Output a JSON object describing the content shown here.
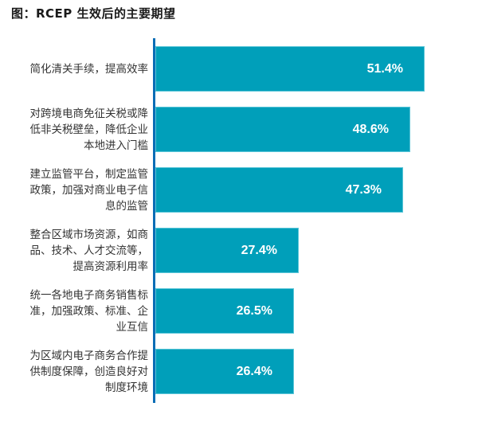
{
  "title": "图：RCEP 生效后的主要期望",
  "colors": {
    "bar": "#009fba",
    "axis": "#0a6db5",
    "value_text": "#ffffff",
    "label_text": "#333333"
  },
  "chart_data": {
    "type": "bar",
    "orientation": "horizontal",
    "title": "图：RCEP 生效后的主要期望",
    "xlabel": "",
    "ylabel": "",
    "grid": false,
    "legend": null,
    "categories": [
      "简化清关手续，提高效率",
      "对跨境电商免征关税或降低非关税壁垒，降低企业本地进入门槛",
      "建立监管平台，制定监管政策，加强对商业电子信息的监管",
      "整合区域市场资源，如商品、技术、人才交流等，提高资源利用率",
      "统一各地电子商务销售标准，加强政策、标准、企业互信",
      "为区域内电子商务合作提供制度保障，创造良好对制度环境"
    ],
    "values": [
      51.4,
      48.6,
      47.3,
      27.4,
      26.5,
      26.4
    ],
    "value_labels": [
      "51.4%",
      "48.6%",
      "47.3%",
      "27.4%",
      "26.5%",
      "26.4%"
    ],
    "unit": "%",
    "xlim": [
      0,
      55
    ]
  },
  "rows": [
    {
      "lines": [
        "简化清关手续，提高效率"
      ],
      "value": "51.4%"
    },
    {
      "lines": [
        "对跨境电商免征关税或降",
        "低非关税壁垒，降低企业",
        "本地进入门槛"
      ],
      "value": "48.6%"
    },
    {
      "lines": [
        "建立监管平台，制定监管",
        "政策，加强对商业电子信",
        "息的监管"
      ],
      "value": "47.3%"
    },
    {
      "lines": [
        "整合区域市场资源，如商",
        "品、技术、人才交流等，",
        "提高资源利用率"
      ],
      "value": "27.4%"
    },
    {
      "lines": [
        "统一各地电子商务销售标",
        "准，加强政策、标准、企",
        "业互信"
      ],
      "value": "26.5%"
    },
    {
      "lines": [
        "为区域内电子商务合作提",
        "供制度保障，创造良好对",
        "制度环境"
      ],
      "value": "26.4%"
    }
  ]
}
